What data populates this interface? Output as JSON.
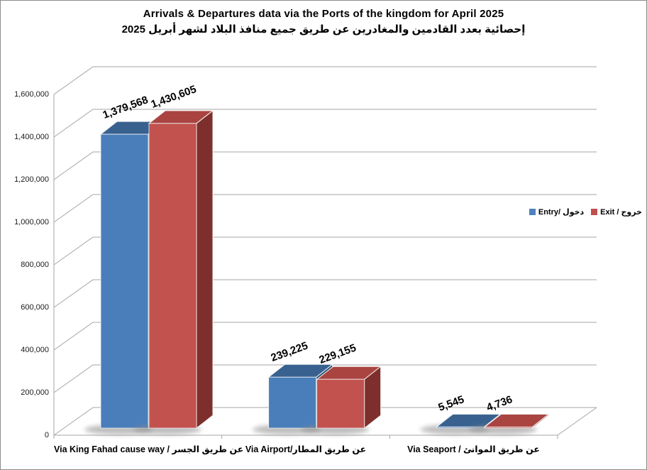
{
  "window": {
    "background": "#ffffff",
    "border_color": "#8c8c8c"
  },
  "title": {
    "line1": "Arrivals & Departures data via the Ports of the kingdom for April 2025",
    "line2_ar": "إحصائية بعدد القادمين والمغادرين عن طريق جميع منافذ البلاد لشهر أبريل 2025"
  },
  "legend": {
    "items": [
      {
        "label": "Entry/ دخول",
        "color": "#4F81BD"
      },
      {
        "label": "Exit / خروج",
        "color": "#C0504D"
      }
    ]
  },
  "chart_data": {
    "type": "bar",
    "style": "3d-clustered-column",
    "title": "Arrivals & Departures data via the Ports of the kingdom for April 2025",
    "subtitle": "إحصائية بعدد القادمين والمغادرين عن طريق جميع منافذ البلاد لشهر أبريل 2025",
    "categories": [
      "Via King Fahad cause way / عن طريق الجسر",
      "Via Airport/عن طريق المطار",
      "Via Seaport / عن طريق الموانئ"
    ],
    "series": [
      {
        "name": "Entry/ دخول",
        "values": [
          1379568,
          239225,
          5545
        ],
        "labels": [
          "1,379,568",
          "239,225",
          "5,545"
        ],
        "color_front": "#4A7EBB",
        "color_top": "#38618F",
        "color_side": "#2C5176"
      },
      {
        "name": "Exit / خروج",
        "values": [
          1430605,
          229155,
          4736
        ],
        "labels": [
          "1,430,605",
          "229,155",
          "4,736"
        ],
        "color_front": "#C2524E",
        "color_top": "#A94441",
        "color_side": "#7E2E2C"
      }
    ],
    "ylabel": "",
    "xlabel": "",
    "ylim": [
      0,
      1600000
    ],
    "ytick_step": 200000,
    "y_ticks": [
      "0",
      "200,000",
      "400,000",
      "600,000",
      "800,000",
      "1,000,000",
      "1,200,000",
      "1,400,000",
      "1,600,000"
    ],
    "grid": true,
    "gridline_color": "#A6A6A6",
    "legend_position": "right"
  }
}
